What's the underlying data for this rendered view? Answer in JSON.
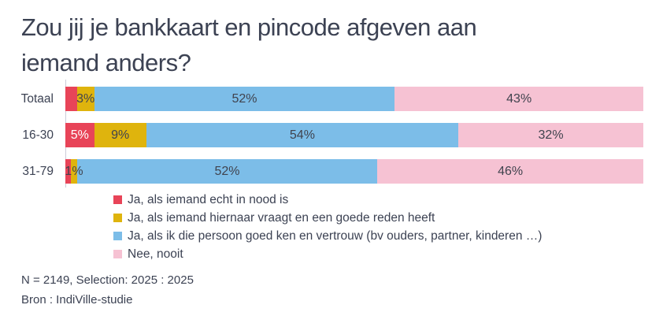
{
  "header": {
    "title": "Zou jij je bankkaart en pincode afgeven aan iemand anders?",
    "title_lines": [
      "Zou jij je bankkaart en pincode afgeven aan",
      "iemand anders?"
    ]
  },
  "chart_data": {
    "type": "bar",
    "orientation": "horizontal",
    "stacked": true,
    "grid": false,
    "xlim": [
      0,
      100
    ],
    "legend_position": "bottom-left",
    "categories": [
      "Totaal",
      "16-30",
      "31-79"
    ],
    "series": [
      {
        "name": "Ja, als iemand echt in nood is",
        "color": "#e84458",
        "label_color": "#ffffff",
        "values": [
          2,
          5,
          1
        ],
        "labels": [
          "",
          "5%",
          ""
        ]
      },
      {
        "name": "Ja, als iemand hiernaar vraagt en een goede reden heeft",
        "color": "#dfb40d",
        "label_color": "#40434e",
        "values": [
          3,
          9,
          1
        ],
        "labels": [
          "3%",
          "9%",
          "1%"
        ]
      },
      {
        "name": "Ja, als ik die persoon goed ken en vertrouw (bv ouders, partner, kinderen …)",
        "color": "#7cbde8",
        "label_color": "#40434e",
        "values": [
          52,
          54,
          52
        ],
        "labels": [
          "52%",
          "54%",
          "52%"
        ]
      },
      {
        "name": "Nee, nooit",
        "color": "#f6c2d3",
        "label_color": "#40434e",
        "values": [
          43,
          32,
          46
        ],
        "labels": [
          "43%",
          "32%",
          "46%"
        ]
      }
    ]
  },
  "footer": {
    "sample_note": "N = 2149, Selection: 2025 : 2025",
    "source_note": "Bron : IndiVille-studie"
  }
}
